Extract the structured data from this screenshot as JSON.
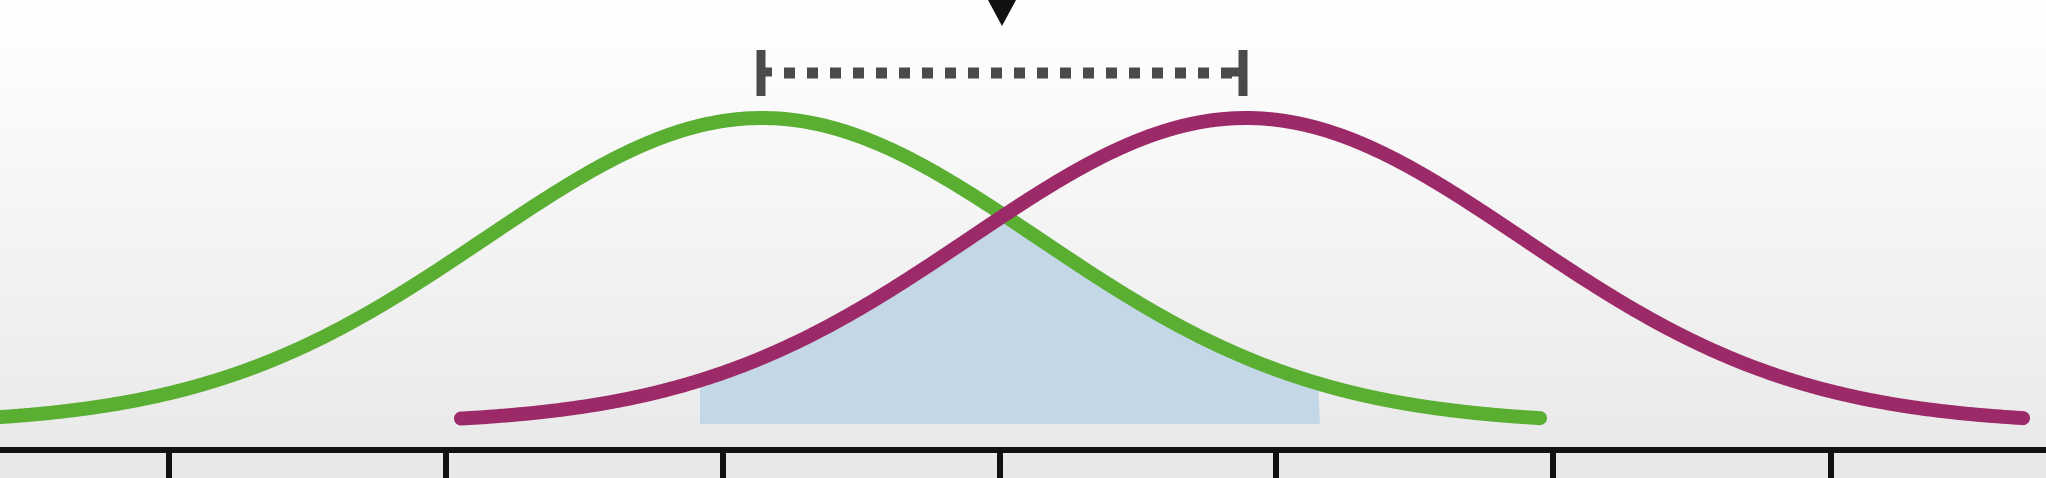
{
  "colors": {
    "background_top": "#ffffff",
    "background_bottom": "#e8e8e8",
    "curve_a": "#5aaf33",
    "curve_b": "#9c2a68",
    "overlap_fill": "#c4d7e6",
    "axis": "#111111",
    "bracket": "#4a4a4a",
    "marker": "#111111"
  },
  "diagram": {
    "description_icons": {
      "marker": "down-triangle-marker-icon",
      "bracket": "dotted-distance-bracket"
    },
    "curves": [
      {
        "id": "curve-a",
        "color_key": "curve_a",
        "mean": 0,
        "sd": 1
      },
      {
        "id": "curve-b",
        "color_key": "curve_b",
        "mean": 1.75,
        "sd": 1
      }
    ],
    "axis_ticks": 7
  }
}
